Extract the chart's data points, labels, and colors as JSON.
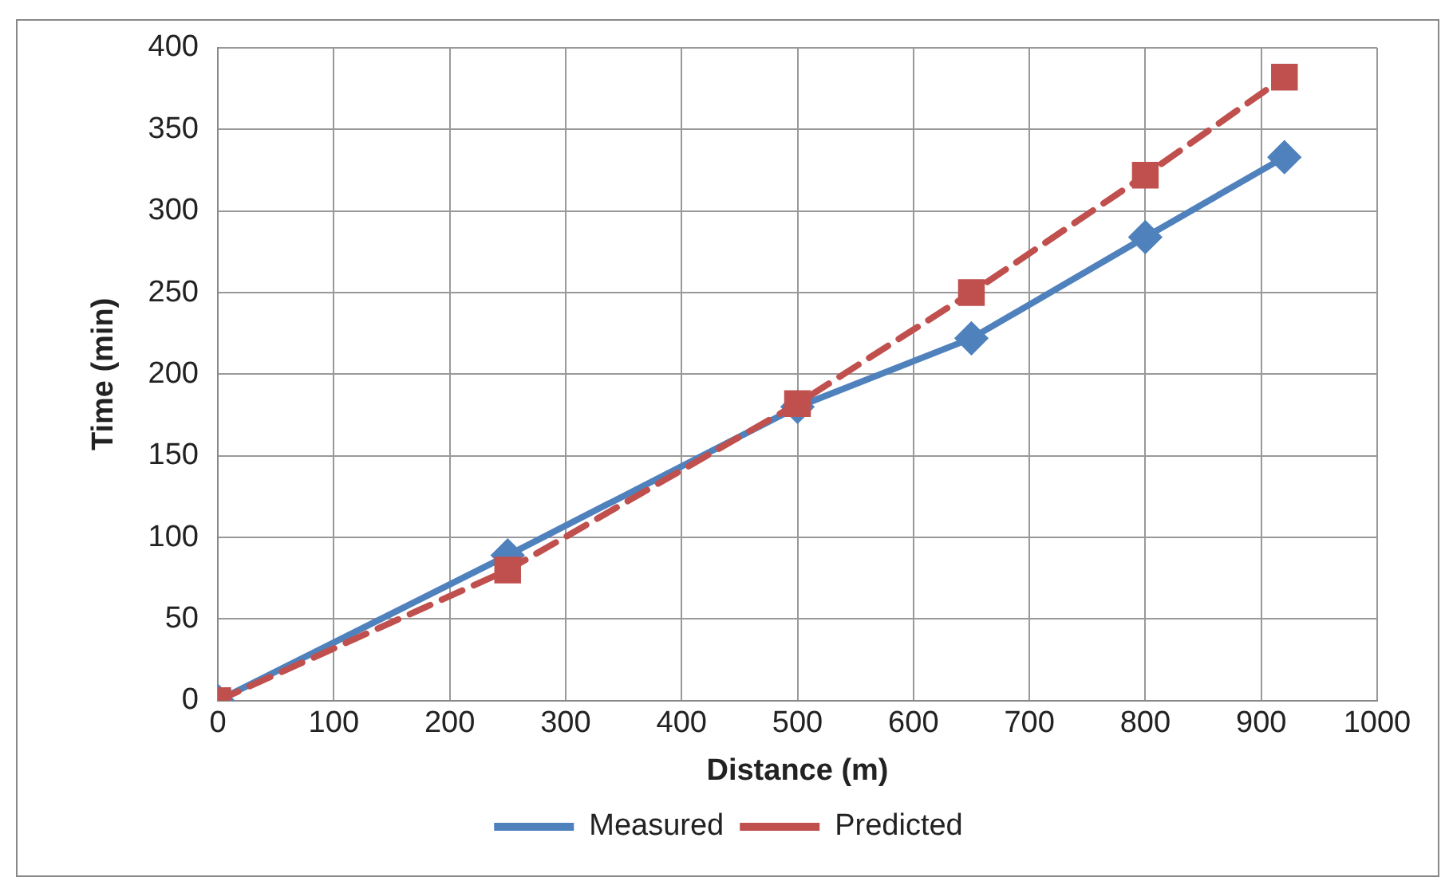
{
  "chart_data": {
    "type": "line",
    "xlabel": "Distance (m)",
    "ylabel": "Time (min)",
    "xlim": [
      0,
      1000
    ],
    "xticks": [
      0,
      100,
      200,
      300,
      400,
      500,
      600,
      700,
      800,
      900,
      1000
    ],
    "ylim": [
      0,
      400
    ],
    "yticks": [
      0,
      50,
      100,
      150,
      200,
      250,
      300,
      350,
      400
    ],
    "grid": true,
    "legend": "bottom",
    "series": [
      {
        "name": "Measured",
        "color": "#4f81bd",
        "marker": "diamond",
        "line_style": "solid",
        "x": [
          0,
          250,
          500,
          650,
          800,
          920
        ],
        "values": [
          0,
          89,
          180,
          222,
          284,
          333
        ]
      },
      {
        "name": "Predicted",
        "color": "#c0504d",
        "marker": "square",
        "line_style": "dashed",
        "x": [
          0,
          250,
          500,
          650,
          800,
          920
        ],
        "values": [
          0,
          80,
          182,
          250,
          322,
          382
        ]
      }
    ]
  }
}
